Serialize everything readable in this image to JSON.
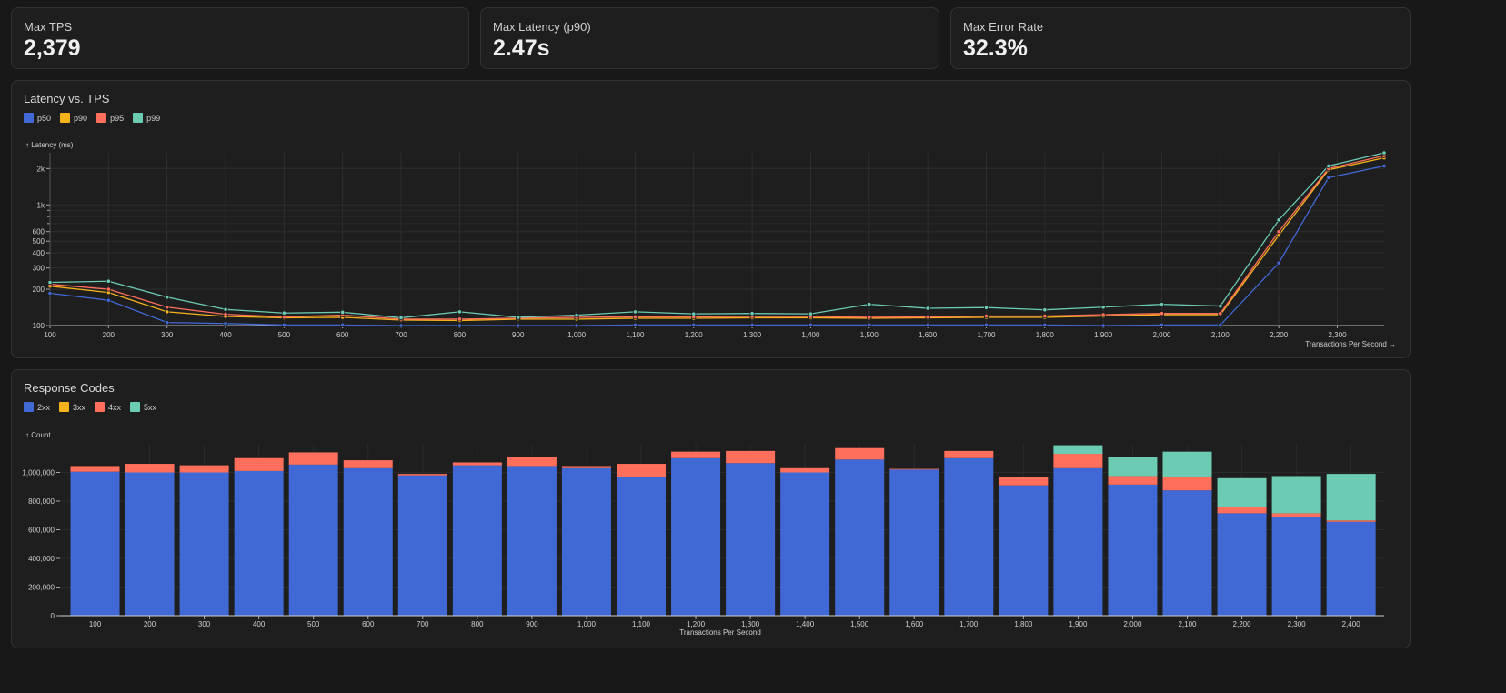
{
  "stats": [
    {
      "title": "Max TPS",
      "value": "2,379"
    },
    {
      "title": "Max Latency (p90)",
      "value": "2.47s"
    },
    {
      "title": "Max Error Rate",
      "value": "32.3%"
    }
  ],
  "colors": {
    "blue": "#4169d6",
    "yellow": "#f5b31b",
    "red": "#ff6f5b",
    "teal": "#6ccbb3"
  },
  "latency_panel": {
    "title": "Latency vs. TPS",
    "legend": [
      "p50",
      "p90",
      "p95",
      "p99"
    ],
    "y_axis_label": "↑ Latency (ms)",
    "x_axis_label": "Transactions Per Second →"
  },
  "codes_panel": {
    "title": "Response Codes",
    "legend": [
      "2xx",
      "3xx",
      "4xx",
      "5xx"
    ],
    "y_axis_label": "↑ Count",
    "x_axis_label": "Transactions Per Second"
  },
  "chart_data": [
    {
      "type": "line",
      "title": "Latency vs. TPS",
      "xlabel": "Transactions Per Second",
      "ylabel": "Latency (ms)",
      "yscale": "log",
      "xlim": [
        100,
        2380
      ],
      "ylim": [
        100,
        2700
      ],
      "x_ticks": [
        100,
        200,
        300,
        400,
        500,
        600,
        700,
        800,
        900,
        1000,
        1100,
        1200,
        1300,
        1400,
        1500,
        1600,
        1700,
        1800,
        1900,
        2000,
        2100,
        2200,
        2300
      ],
      "x_tick_labels": [
        "100",
        "200",
        "300",
        "400",
        "500",
        "600",
        "700",
        "800",
        "900",
        "1,000",
        "1,100",
        "1,200",
        "1,300",
        "1,400",
        "1,500",
        "1,600",
        "1,700",
        "1,800",
        "1,900",
        "2,000",
        "2,100",
        "2,200",
        "2,300"
      ],
      "y_ticks": [
        100,
        200,
        300,
        400,
        500,
        600,
        1000,
        2000
      ],
      "y_tick_labels": [
        "100",
        "200",
        "300",
        "400",
        "500",
        "600",
        "1k",
        "2k"
      ],
      "y_minor_ticks": [
        700,
        800,
        900
      ],
      "grid": true,
      "legend_position": "top-left",
      "x": [
        100,
        200,
        300,
        400,
        500,
        600,
        700,
        800,
        900,
        1000,
        1100,
        1200,
        1300,
        1400,
        1500,
        1600,
        1700,
        1800,
        1900,
        2000,
        2100,
        2200,
        2285,
        2380
      ],
      "series": [
        {
          "name": "p50",
          "values": [
            185,
            162,
            106,
            104,
            101,
            101,
            100,
            100,
            100,
            100,
            101,
            101,
            101,
            101,
            101,
            101,
            101,
            101,
            100,
            101,
            101,
            330,
            1680,
            2100
          ]
        },
        {
          "name": "p90",
          "values": [
            212,
            188,
            130,
            119,
            116,
            117,
            111,
            110,
            113,
            113,
            115,
            115,
            116,
            116,
            115,
            116,
            117,
            117,
            120,
            123,
            123,
            560,
            1950,
            2450
          ]
        },
        {
          "name": "p95",
          "values": [
            220,
            200,
            142,
            124,
            118,
            122,
            113,
            113,
            115,
            117,
            118,
            118,
            119,
            119,
            117,
            118,
            120,
            120,
            123,
            126,
            126,
            600,
            2000,
            2550
          ]
        },
        {
          "name": "p99",
          "values": [
            228,
            233,
            172,
            136,
            127,
            129,
            116,
            130,
            117,
            122,
            130,
            125,
            126,
            125,
            150,
            139,
            141,
            135,
            142,
            150,
            145,
            750,
            2100,
            2700
          ]
        }
      ]
    },
    {
      "type": "bar",
      "stacked": true,
      "title": "Response Codes",
      "xlabel": "Transactions Per Second",
      "ylabel": "Count",
      "ylim": [
        0,
        1200000
      ],
      "y_ticks": [
        0,
        200000,
        400000,
        600000,
        800000,
        1000000
      ],
      "y_tick_labels": [
        "0",
        "200,000",
        "400,000",
        "600,000",
        "800,000",
        "1,000,000"
      ],
      "grid": true,
      "legend_position": "top-left",
      "categories": [
        "100",
        "200",
        "300",
        "400",
        "500",
        "600",
        "700",
        "800",
        "900",
        "1,000",
        "1,100",
        "1,200",
        "1,300",
        "1,400",
        "1,500",
        "1,600",
        "1,700",
        "1,800",
        "1,900",
        "2,000",
        "2,100",
        "2,200",
        "2,300",
        "2,400"
      ],
      "series": [
        {
          "name": "2xx",
          "values": [
            1005000,
            1000000,
            1000000,
            1010000,
            1055000,
            1030000,
            980000,
            1050000,
            1045000,
            1030000,
            965000,
            1100000,
            1065000,
            1000000,
            1090000,
            1020000,
            1100000,
            910000,
            1030000,
            915000,
            875000,
            715000,
            690000,
            655000
          ]
        },
        {
          "name": "3xx",
          "values": [
            0,
            0,
            0,
            0,
            0,
            0,
            0,
            0,
            0,
            0,
            0,
            0,
            0,
            0,
            0,
            0,
            0,
            0,
            0,
            0,
            0,
            0,
            0,
            0
          ]
        },
        {
          "name": "4xx",
          "values": [
            40000,
            60000,
            50000,
            90000,
            85000,
            55000,
            10000,
            20000,
            60000,
            15000,
            95000,
            45000,
            85000,
            30000,
            80000,
            5000,
            50000,
            55000,
            100000,
            60000,
            90000,
            45000,
            25000,
            10000
          ]
        },
        {
          "name": "5xx",
          "values": [
            0,
            0,
            0,
            0,
            0,
            0,
            0,
            0,
            0,
            0,
            0,
            0,
            0,
            0,
            0,
            0,
            0,
            0,
            60000,
            130000,
            180000,
            200000,
            260000,
            325000
          ]
        }
      ]
    }
  ]
}
